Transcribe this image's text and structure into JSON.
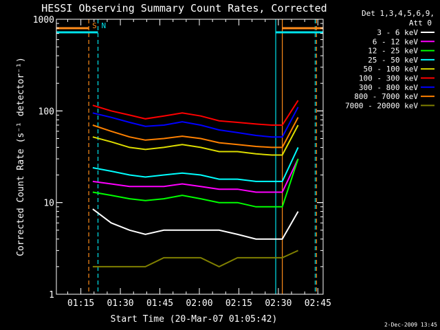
{
  "chart_data": {
    "type": "line",
    "title": "HESSI Observing Summary Count Rates, Corrected",
    "xlabel": "Start Time (20-Mar-07 01:05:42)",
    "ylabel": "Corrected Count Rate (s⁻¹ detector⁻¹)",
    "xlim": [
      "01:05:42",
      "02:47:00"
    ],
    "ylim": [
      1,
      1000
    ],
    "yscale": "log",
    "grid": false,
    "legend_position": "right",
    "x_ticks": [
      "01:15",
      "01:30",
      "01:45",
      "02:00",
      "02:15",
      "02:30",
      "02:45"
    ],
    "y_ticks": [
      "1",
      "10",
      "100",
      "1000"
    ],
    "legend_header": [
      "Det 1,3,4,5,6,9,",
      "Att 0"
    ],
    "footer_date": "2-Dec-2009 13:45",
    "markers": [
      {
        "label": "S",
        "time": "01:18:00",
        "color": "#ff8c1a",
        "style": "dashed"
      },
      {
        "label": "N",
        "time": "01:21:30",
        "color": "#00e5ee",
        "style": "dashed"
      },
      {
        "label": "",
        "time": "02:29:00",
        "color": "#00e5ee",
        "style": "solid"
      },
      {
        "label": "",
        "time": "02:31:30",
        "color": "#ff8c1a",
        "style": "solid"
      },
      {
        "label": "",
        "time": "02:44:00",
        "color": "#00e5ee",
        "style": "dashed"
      },
      {
        "label": "",
        "time": "02:44:30",
        "color": "#ff8c1a",
        "style": "dashed"
      }
    ],
    "x_minutes": [
      0,
      7,
      14,
      20,
      27,
      34,
      41,
      48,
      55,
      62,
      68,
      72,
      78
    ],
    "series": [
      {
        "name": "3 - 6 keV",
        "color": "#000000",
        "values": [
          8.5,
          6.0,
          5.0,
          4.5,
          5.0,
          5.0,
          5.0,
          5.0,
          4.5,
          4.0,
          4.0,
          4.0,
          8.0
        ]
      },
      {
        "name": "6 - 12 keV",
        "color": "#ff00ff",
        "values": [
          17,
          16,
          15,
          15,
          15,
          16,
          15,
          14,
          14,
          13,
          13,
          13,
          30
        ]
      },
      {
        "name": "12 - 25 keV",
        "color": "#00ff00",
        "values": [
          13,
          12,
          11,
          10.5,
          11,
          12,
          11,
          10,
          10,
          9,
          9,
          9,
          30
        ]
      },
      {
        "name": "25 - 50 keV",
        "color": "#00ffff",
        "values": [
          24,
          22,
          20,
          19,
          20,
          21,
          20,
          18,
          18,
          17,
          17,
          17,
          40
        ]
      },
      {
        "name": "50 - 100 keV",
        "color": "#dddd00",
        "values": [
          52,
          46,
          40,
          38,
          40,
          43,
          40,
          36,
          36,
          34,
          33,
          33,
          70
        ]
      },
      {
        "name": "100 - 300 keV",
        "color": "#ff0000",
        "values": [
          115,
          100,
          90,
          82,
          88,
          95,
          88,
          78,
          75,
          72,
          70,
          70,
          130
        ]
      },
      {
        "name": "300 - 800 keV",
        "color": "#0000ff",
        "values": [
          95,
          85,
          75,
          68,
          70,
          76,
          70,
          62,
          58,
          54,
          52,
          52,
          110
        ]
      },
      {
        "name": "800 - 7000 keV",
        "color": "#ff8000",
        "values": [
          70,
          60,
          52,
          48,
          50,
          53,
          50,
          45,
          43,
          41,
          40,
          40,
          85
        ]
      },
      {
        "name": "7000 - 20000 keV",
        "color": "#808000",
        "values": [
          2.0,
          2.0,
          2.0,
          2.0,
          2.5,
          2.5,
          2.5,
          2.0,
          2.5,
          2.5,
          2.5,
          2.5,
          3.0
        ]
      }
    ]
  }
}
